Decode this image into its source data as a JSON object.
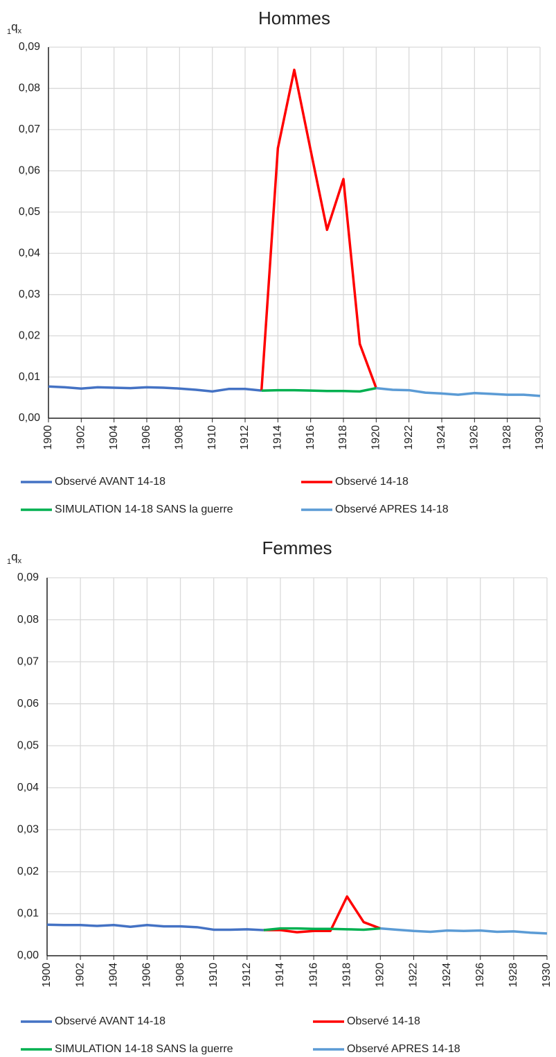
{
  "chart_data": [
    {
      "type": "line",
      "title": "Hommes",
      "y_label": {
        "pre": "1",
        "base": "q",
        "sub": "x"
      },
      "x": [
        1900,
        1901,
        1902,
        1903,
        1904,
        1905,
        1906,
        1907,
        1908,
        1909,
        1910,
        1911,
        1912,
        1913,
        1914,
        1915,
        1916,
        1917,
        1918,
        1919,
        1920,
        1921,
        1922,
        1923,
        1924,
        1925,
        1926,
        1927,
        1928,
        1929,
        1930
      ],
      "xlim": [
        1900,
        1930
      ],
      "xticks": [
        1900,
        1902,
        1904,
        1906,
        1908,
        1910,
        1912,
        1914,
        1916,
        1918,
        1920,
        1922,
        1924,
        1926,
        1928,
        1930
      ],
      "ylim": [
        0,
        0.09
      ],
      "yticks": [
        {
          "value": 0,
          "label": "0,00"
        },
        {
          "value": 0.01,
          "label": "0,01"
        },
        {
          "value": 0.02,
          "label": "0,02"
        },
        {
          "value": 0.03,
          "label": "0,03"
        },
        {
          "value": 0.04,
          "label": "0,04"
        },
        {
          "value": 0.05,
          "label": "0,05"
        },
        {
          "value": 0.06,
          "label": "0,06"
        },
        {
          "value": 0.07,
          "label": "0,07"
        },
        {
          "value": 0.08,
          "label": "0,08"
        },
        {
          "value": 0.09,
          "label": "0,09"
        }
      ],
      "grid": true,
      "series": [
        {
          "name": "Observé AVANT 14-18",
          "color": "#4472c4",
          "values": [
            0.0077,
            0.0075,
            0.0072,
            0.0075,
            0.0074,
            0.0073,
            0.0075,
            0.0074,
            0.0072,
            0.0069,
            0.0065,
            0.0071,
            0.0071,
            0.0067,
            null,
            null,
            null,
            null,
            null,
            null,
            null,
            null,
            null,
            null,
            null,
            null,
            null,
            null,
            null,
            null,
            null
          ]
        },
        {
          "name": "Observé 14-18",
          "color": "#ff0000",
          "values": [
            null,
            null,
            null,
            null,
            null,
            null,
            null,
            null,
            null,
            null,
            null,
            null,
            null,
            0.0067,
            0.0655,
            0.0845,
            0.065,
            0.0457,
            0.058,
            0.018,
            0.0073,
            null,
            null,
            null,
            null,
            null,
            null,
            null,
            null,
            null,
            null
          ]
        },
        {
          "name": "SIMULATION 14-18 SANS la guerre",
          "color": "#00b050",
          "values": [
            null,
            null,
            null,
            null,
            null,
            null,
            null,
            null,
            null,
            null,
            null,
            null,
            null,
            0.0067,
            0.0068,
            0.0068,
            0.0067,
            0.0066,
            0.0066,
            0.0065,
            0.0073,
            null,
            null,
            null,
            null,
            null,
            null,
            null,
            null,
            null,
            null
          ]
        },
        {
          "name": "Observé APRES 14-18",
          "color": "#5b9bd5",
          "values": [
            null,
            null,
            null,
            null,
            null,
            null,
            null,
            null,
            null,
            null,
            null,
            null,
            null,
            null,
            null,
            null,
            null,
            null,
            null,
            null,
            0.0073,
            0.0069,
            0.0068,
            0.0062,
            0.006,
            0.0057,
            0.0061,
            0.0059,
            0.0057,
            0.0057,
            0.0054
          ]
        }
      ]
    },
    {
      "type": "line",
      "title": "Femmes",
      "y_label": {
        "pre": "1",
        "base": "q",
        "sub": "x"
      },
      "x": [
        1900,
        1901,
        1902,
        1903,
        1904,
        1905,
        1906,
        1907,
        1908,
        1909,
        1910,
        1911,
        1912,
        1913,
        1914,
        1915,
        1916,
        1917,
        1918,
        1919,
        1920,
        1921,
        1922,
        1923,
        1924,
        1925,
        1926,
        1927,
        1928,
        1929,
        1930
      ],
      "xlim": [
        1900,
        1930
      ],
      "xticks": [
        1900,
        1902,
        1904,
        1906,
        1908,
        1910,
        1912,
        1914,
        1916,
        1918,
        1920,
        1922,
        1924,
        1926,
        1928,
        1930
      ],
      "ylim": [
        0,
        0.09
      ],
      "yticks": [
        {
          "value": 0,
          "label": "0,00"
        },
        {
          "value": 0.01,
          "label": "0,01"
        },
        {
          "value": 0.02,
          "label": "0,02"
        },
        {
          "value": 0.03,
          "label": "0,03"
        },
        {
          "value": 0.04,
          "label": "0,04"
        },
        {
          "value": 0.05,
          "label": "0,05"
        },
        {
          "value": 0.06,
          "label": "0,06"
        },
        {
          "value": 0.07,
          "label": "0,07"
        },
        {
          "value": 0.08,
          "label": "0,08"
        },
        {
          "value": 0.09,
          "label": "0,09"
        }
      ],
      "grid": true,
      "series": [
        {
          "name": "Observé AVANT 14-18",
          "color": "#4472c4",
          "values": [
            0.0074,
            0.0073,
            0.0073,
            0.0071,
            0.0073,
            0.0069,
            0.0073,
            0.007,
            0.007,
            0.0068,
            0.0062,
            0.0062,
            0.0063,
            0.0061,
            null,
            null,
            null,
            null,
            null,
            null,
            null,
            null,
            null,
            null,
            null,
            null,
            null,
            null,
            null,
            null,
            null
          ]
        },
        {
          "name": "Observé 14-18",
          "color": "#ff0000",
          "values": [
            null,
            null,
            null,
            null,
            null,
            null,
            null,
            null,
            null,
            null,
            null,
            null,
            null,
            0.0061,
            0.0061,
            0.0056,
            0.0059,
            0.0059,
            0.0141,
            0.008,
            0.0065,
            null,
            null,
            null,
            null,
            null,
            null,
            null,
            null,
            null,
            null
          ]
        },
        {
          "name": "SIMULATION 14-18 SANS la guerre",
          "color": "#00b050",
          "values": [
            null,
            null,
            null,
            null,
            null,
            null,
            null,
            null,
            null,
            null,
            null,
            null,
            null,
            0.0061,
            0.0065,
            0.0065,
            0.0064,
            0.0064,
            0.0063,
            0.0062,
            0.0065,
            null,
            null,
            null,
            null,
            null,
            null,
            null,
            null,
            null,
            null
          ]
        },
        {
          "name": "Observé APRES 14-18",
          "color": "#5b9bd5",
          "values": [
            null,
            null,
            null,
            null,
            null,
            null,
            null,
            null,
            null,
            null,
            null,
            null,
            null,
            null,
            null,
            null,
            null,
            null,
            null,
            null,
            0.0065,
            0.0062,
            0.0059,
            0.0057,
            0.006,
            0.0059,
            0.006,
            0.0057,
            0.0058,
            0.0055,
            0.0053
          ]
        }
      ]
    }
  ]
}
